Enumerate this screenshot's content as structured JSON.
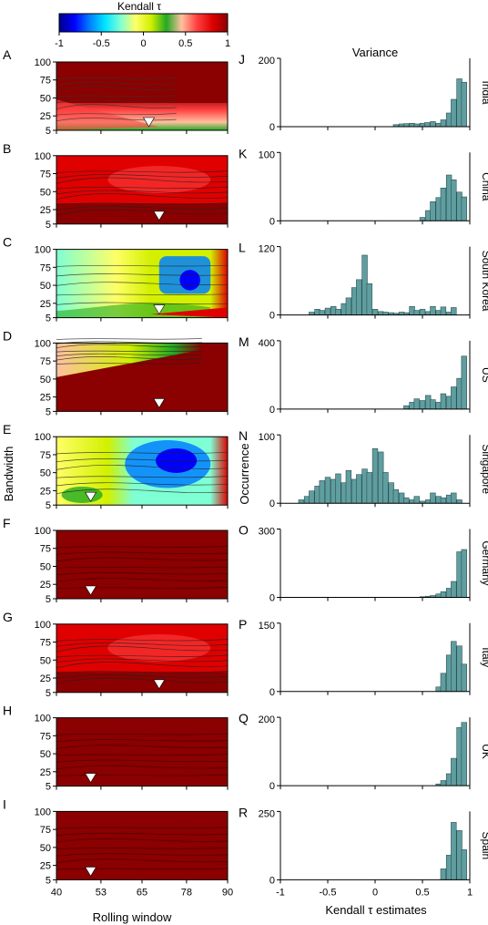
{
  "colorbar": {
    "title": "Kendall τ",
    "ticks": [
      "-1",
      "-0.5",
      "0",
      "0.5",
      "1"
    ],
    "stops": [
      "#00008b",
      "#0000ff",
      "#0080ff",
      "#00e5ff",
      "#7fffd4",
      "#ffff66",
      "#d2f000",
      "#22aa22",
      "#ffc0a0",
      "#ff4040",
      "#e00000",
      "#8b0000"
    ]
  },
  "left_axis": {
    "xlabel": "Rolling window",
    "ylabel": "Bandwidth",
    "xticks": [
      "40",
      "53",
      "65",
      "78",
      "90"
    ],
    "yticks": [
      "5",
      "25",
      "50",
      "75",
      "100"
    ]
  },
  "right_axis": {
    "title": "Variance",
    "xlabel": "Kendall τ estimates",
    "ylabel": "Occurrence",
    "xticks": [
      "-1",
      "-0.5",
      "0",
      "0.5",
      "1"
    ]
  },
  "panels_left": [
    {
      "letter": "A",
      "marker": [
        67,
        5
      ]
    },
    {
      "letter": "B",
      "marker": [
        70,
        5
      ]
    },
    {
      "letter": "C",
      "marker": [
        70,
        5
      ]
    },
    {
      "letter": "D",
      "marker": [
        70,
        5
      ]
    },
    {
      "letter": "E",
      "marker": [
        50,
        5
      ]
    },
    {
      "letter": "F",
      "marker": [
        50,
        5
      ]
    },
    {
      "letter": "G",
      "marker": [
        70,
        5
      ]
    },
    {
      "letter": "H",
      "marker": [
        50,
        5
      ]
    },
    {
      "letter": "I",
      "marker": [
        50,
        5
      ]
    }
  ],
  "chart_data": [
    {
      "type": "bar",
      "letter": "J",
      "country": "India",
      "ymax": 200,
      "ytick_labels": [
        "0",
        "200"
      ],
      "bins": [
        [
          0.22,
          6
        ],
        [
          0.28,
          8
        ],
        [
          0.33,
          9
        ],
        [
          0.39,
          10
        ],
        [
          0.44,
          8
        ],
        [
          0.5,
          10
        ],
        [
          0.55,
          12
        ],
        [
          0.61,
          15
        ],
        [
          0.67,
          10
        ],
        [
          0.72,
          20
        ],
        [
          0.78,
          40
        ],
        [
          0.83,
          80
        ],
        [
          0.89,
          140
        ],
        [
          0.94,
          130
        ]
      ]
    },
    {
      "type": "bar",
      "letter": "K",
      "country": "China",
      "ymax": 100,
      "ytick_labels": [
        "0",
        "100"
      ],
      "bins": [
        [
          0.5,
          5
        ],
        [
          0.56,
          15
        ],
        [
          0.61,
          28
        ],
        [
          0.67,
          34
        ],
        [
          0.72,
          48
        ],
        [
          0.78,
          67
        ],
        [
          0.83,
          60
        ],
        [
          0.89,
          42
        ],
        [
          0.94,
          35
        ]
      ]
    },
    {
      "type": "bar",
      "letter": "L",
      "country": "South Korea",
      "ymax": 120,
      "ytick_labels": [
        "0",
        "120"
      ],
      "bins": [
        [
          -0.67,
          5
        ],
        [
          -0.61,
          10
        ],
        [
          -0.56,
          8
        ],
        [
          -0.5,
          12
        ],
        [
          -0.44,
          15
        ],
        [
          -0.39,
          10
        ],
        [
          -0.33,
          20
        ],
        [
          -0.28,
          30
        ],
        [
          -0.22,
          48
        ],
        [
          -0.17,
          62
        ],
        [
          -0.11,
          105
        ],
        [
          -0.06,
          55
        ],
        [
          0.0,
          10
        ],
        [
          0.06,
          6
        ],
        [
          0.11,
          5
        ],
        [
          0.17,
          4
        ],
        [
          0.22,
          3
        ],
        [
          0.28,
          5
        ],
        [
          0.33,
          4
        ],
        [
          0.39,
          15
        ],
        [
          0.44,
          8
        ],
        [
          0.5,
          10
        ],
        [
          0.56,
          6
        ],
        [
          0.61,
          15
        ],
        [
          0.67,
          8
        ],
        [
          0.72,
          14
        ],
        [
          0.78,
          5
        ],
        [
          0.83,
          13
        ]
      ]
    },
    {
      "type": "bar",
      "letter": "M",
      "country": "US",
      "ymax": 400,
      "ytick_labels": [
        "0",
        "400"
      ],
      "bins": [
        [
          0.33,
          20
        ],
        [
          0.39,
          40
        ],
        [
          0.44,
          60
        ],
        [
          0.5,
          50
        ],
        [
          0.56,
          80
        ],
        [
          0.61,
          55
        ],
        [
          0.67,
          40
        ],
        [
          0.72,
          90
        ],
        [
          0.78,
          75
        ],
        [
          0.83,
          130
        ],
        [
          0.89,
          180
        ],
        [
          0.94,
          310
        ]
      ]
    },
    {
      "type": "bar",
      "letter": "N",
      "country": "Singapore",
      "ymax": 100,
      "ytick_labels": [
        "0",
        "100"
      ],
      "bins": [
        [
          -0.78,
          5
        ],
        [
          -0.72,
          10
        ],
        [
          -0.67,
          18
        ],
        [
          -0.61,
          25
        ],
        [
          -0.56,
          33
        ],
        [
          -0.5,
          38
        ],
        [
          -0.44,
          35
        ],
        [
          -0.39,
          43
        ],
        [
          -0.33,
          30
        ],
        [
          -0.28,
          48
        ],
        [
          -0.22,
          35
        ],
        [
          -0.17,
          42
        ],
        [
          -0.11,
          50
        ],
        [
          -0.06,
          45
        ],
        [
          0.0,
          80
        ],
        [
          0.06,
          75
        ],
        [
          0.11,
          45
        ],
        [
          0.17,
          30
        ],
        [
          0.22,
          20
        ],
        [
          0.28,
          15
        ],
        [
          0.33,
          8
        ],
        [
          0.39,
          5
        ],
        [
          0.44,
          10
        ],
        [
          0.5,
          3
        ],
        [
          0.56,
          5
        ],
        [
          0.61,
          15
        ],
        [
          0.67,
          10
        ],
        [
          0.72,
          8
        ],
        [
          0.78,
          12
        ],
        [
          0.83,
          15
        ],
        [
          0.89,
          5
        ]
      ]
    },
    {
      "type": "bar",
      "letter": "O",
      "country": "Germany",
      "ymax": 300,
      "ytick_labels": [
        "0",
        "300"
      ],
      "bins": [
        [
          0.5,
          3
        ],
        [
          0.56,
          5
        ],
        [
          0.61,
          8
        ],
        [
          0.67,
          15
        ],
        [
          0.72,
          25
        ],
        [
          0.78,
          40
        ],
        [
          0.83,
          70
        ],
        [
          0.89,
          200
        ],
        [
          0.94,
          210
        ]
      ]
    },
    {
      "type": "bar",
      "letter": "P",
      "country": "Italy",
      "ymax": 150,
      "ytick_labels": [
        "0",
        "150"
      ],
      "bins": [
        [
          0.67,
          10
        ],
        [
          0.72,
          40
        ],
        [
          0.78,
          80
        ],
        [
          0.83,
          110
        ],
        [
          0.89,
          100
        ],
        [
          0.94,
          60
        ]
      ]
    },
    {
      "type": "bar",
      "letter": "Q",
      "country": "UK",
      "ymax": 200,
      "ytick_labels": [
        "0",
        "200"
      ],
      "bins": [
        [
          0.67,
          5
        ],
        [
          0.72,
          15
        ],
        [
          0.78,
          35
        ],
        [
          0.83,
          80
        ],
        [
          0.89,
          170
        ],
        [
          0.94,
          185
        ]
      ]
    },
    {
      "type": "bar",
      "letter": "R",
      "country": "Spain",
      "ymax": 250,
      "ytick_labels": [
        "0",
        "250"
      ],
      "bins": [
        [
          0.72,
          40
        ],
        [
          0.78,
          90
        ],
        [
          0.83,
          210
        ],
        [
          0.89,
          180
        ],
        [
          0.94,
          110
        ]
      ]
    }
  ]
}
